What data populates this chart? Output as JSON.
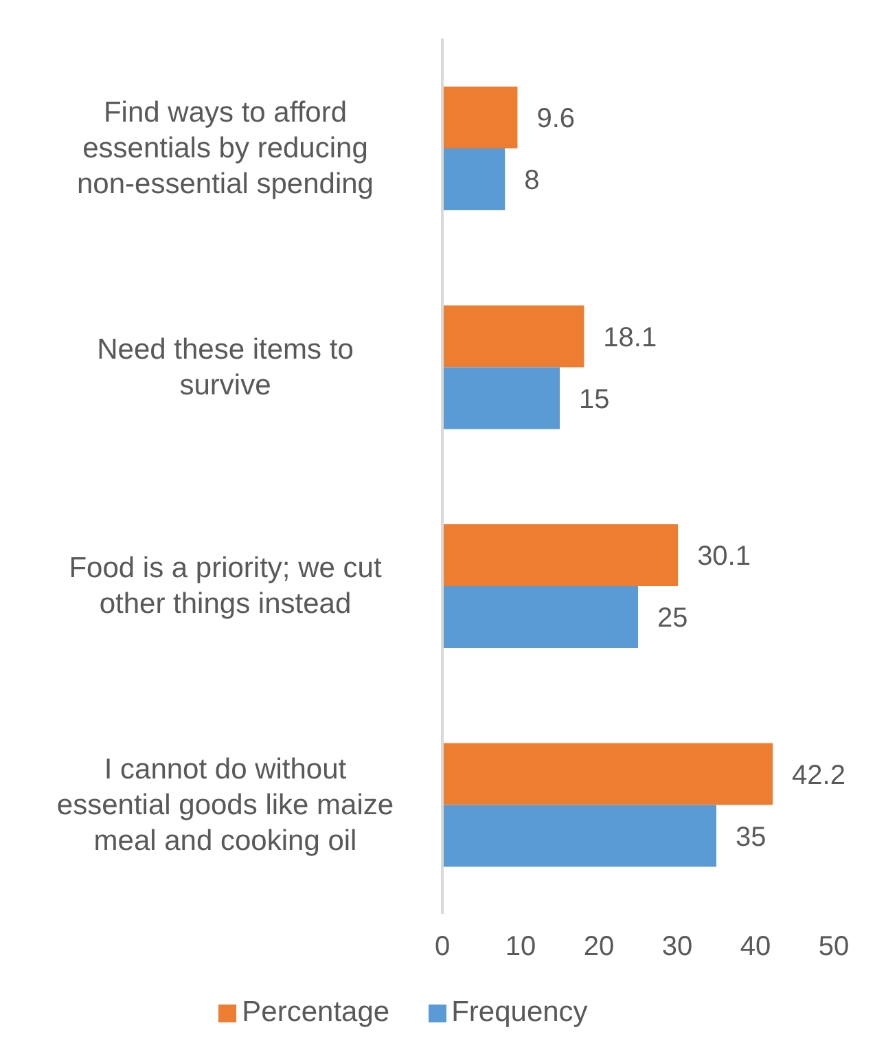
{
  "chart_data": {
    "type": "bar",
    "orientation": "horizontal",
    "categories": [
      "Find ways to afford essentials by reducing non-essential spending",
      "Need these items to survive",
      "Food is a priority; we cut other things instead",
      "I cannot do without essential goods like maize meal and cooking oil"
    ],
    "series": [
      {
        "name": "Percentage",
        "color": "#ed7d31",
        "values": [
          9.6,
          18.1,
          30.1,
          42.2
        ]
      },
      {
        "name": "Frequency",
        "color": "#5b9bd5",
        "values": [
          8,
          15,
          25,
          35
        ]
      }
    ],
    "xlim": [
      0,
      50
    ],
    "xticks": [
      0,
      10,
      20,
      30,
      40,
      50
    ],
    "grid": false,
    "legend": "bottom",
    "data_labels": true
  }
}
